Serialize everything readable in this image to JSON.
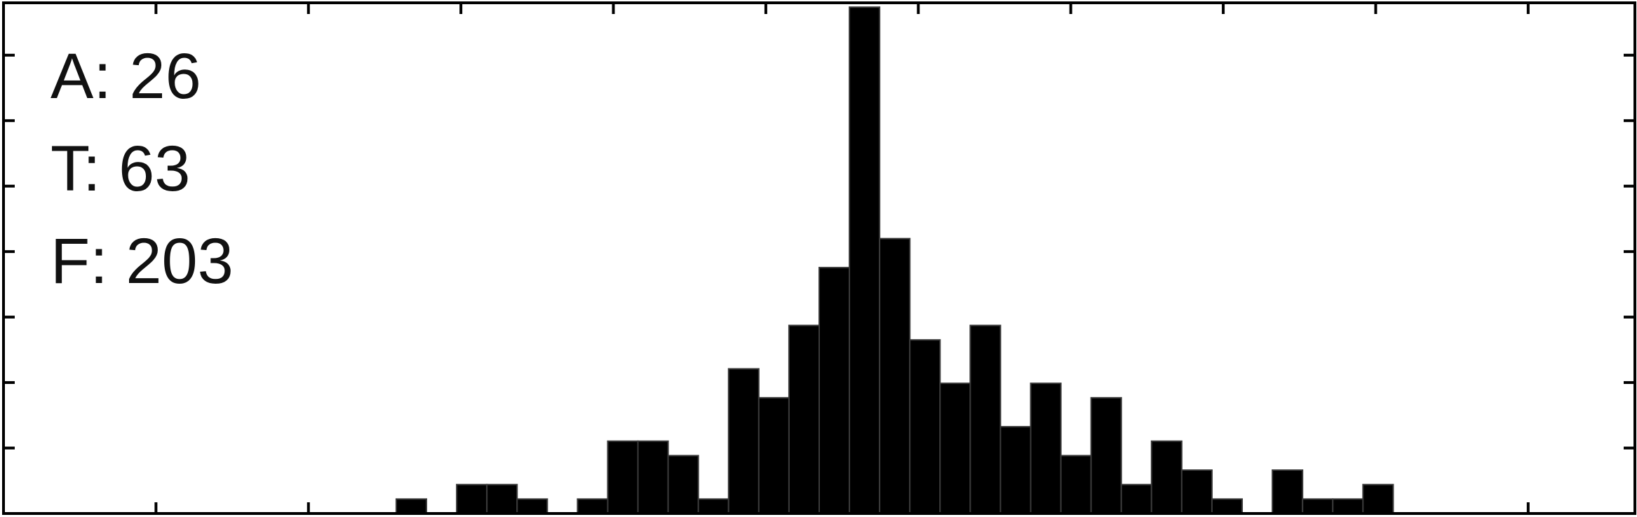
{
  "chart_data": {
    "type": "bar",
    "title": "",
    "xlabel": "",
    "ylabel": "",
    "x_tick_count": 11,
    "y_tick_count": 7,
    "bar_color": "#000000",
    "bins": 54,
    "values": [
      0,
      0,
      0,
      0,
      0,
      0,
      0,
      0,
      0,
      0,
      0,
      0,
      0,
      1,
      0,
      2,
      2,
      1,
      0,
      1,
      5,
      5,
      4,
      1,
      10,
      8,
      13,
      17,
      35,
      19,
      12,
      9,
      13,
      6,
      9,
      4,
      8,
      2,
      5,
      3,
      1,
      0,
      3,
      1,
      1,
      2,
      0,
      0,
      0,
      0,
      0,
      0,
      0,
      0
    ],
    "ylim": [
      0,
      35.3
    ],
    "annotations": [
      "A: 26",
      "T: 63",
      "F: 203"
    ]
  }
}
